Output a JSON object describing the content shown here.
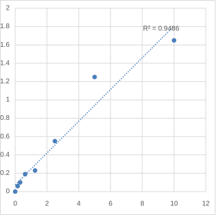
{
  "chart_data": {
    "type": "scatter",
    "x": [
      0,
      0.156,
      0.312,
      0.625,
      1.25,
      2.5,
      5,
      10
    ],
    "series": [
      {
        "color": "#4a7ebb",
        "values": [
          0,
          0.06,
          0.1,
          0.19,
          0.23,
          0.55,
          1.25,
          1.65
        ]
      }
    ],
    "xlim": [
      0,
      12
    ],
    "xticks": [
      0,
      2,
      4,
      6,
      8,
      10,
      12
    ],
    "ylim": [
      0,
      2
    ],
    "yticks": [
      0,
      0.2,
      0.4,
      0.6,
      0.8,
      1,
      1.2,
      1.4,
      1.6,
      1.8,
      2
    ],
    "grid": true,
    "trendline": "linear",
    "annotation": "R² = 0.9486"
  }
}
